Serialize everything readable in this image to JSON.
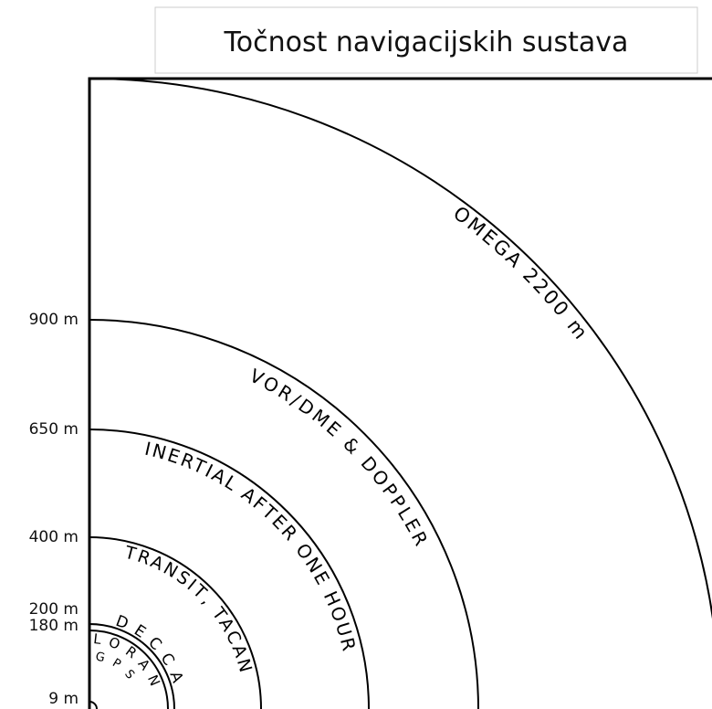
{
  "title": "Točnost navigacijskih sustava",
  "scale_labels": [
    "900 m",
    "650 m",
    "400 m",
    "200 m",
    "180 m",
    "9 m"
  ],
  "arcs": [
    {
      "label": "OMEGA 2200 m"
    },
    {
      "label": "VOR/DME & DOPPLER"
    },
    {
      "label": "INERTIAL AFTER ONE HOUR"
    },
    {
      "label": "TRANSIT, TACAN"
    },
    {
      "label": "DECCA"
    },
    {
      "label": "LORAN"
    },
    {
      "label": "GPS"
    }
  ]
}
